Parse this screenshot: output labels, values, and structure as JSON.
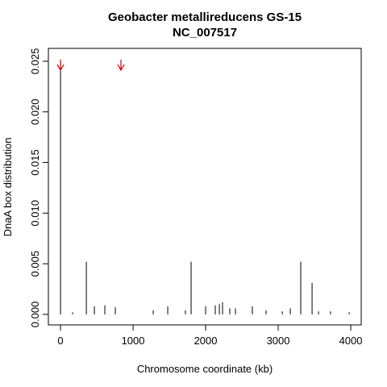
{
  "chart_data": {
    "type": "spike",
    "title": "Geobacter metallireducens GS-15",
    "subtitle": "NC_007517",
    "x_label": "Chromosome coordinate (kb)",
    "y_label": "DnaA box distribution",
    "x": [
      0,
      167,
      356,
      467,
      611,
      756,
      1278,
      1478,
      1722,
      1800,
      2000,
      2133,
      2189,
      2233,
      2333,
      2411,
      2644,
      2833,
      3056,
      3167,
      3311,
      3467,
      3556,
      3722,
      3978
    ],
    "values": [
      0.0245,
      0.0002,
      0.0052,
      0.0008,
      0.0009,
      0.0007,
      0.0004,
      0.0008,
      0.0004,
      0.0052,
      0.0008,
      0.0009,
      0.001,
      0.0012,
      0.0006,
      0.0006,
      0.0008,
      0.0004,
      0.0003,
      0.0006,
      0.0052,
      0.0031,
      0.0003,
      0.0003,
      0.0002
    ],
    "color": "#000000",
    "arrows": {
      "x": [
        0,
        833
      ],
      "color": "#cc0000"
    },
    "xlim": [
      -167,
      4144
    ],
    "ylim": [
      -0.00104,
      0.02627
    ],
    "xticks": [
      0,
      1000,
      2000,
      3000,
      4000
    ],
    "yticks": [
      {
        "value": 0,
        "label": "0.000"
      },
      {
        "value": 0.005,
        "label": "0.005"
      },
      {
        "value": 0.01,
        "label": "0.010"
      },
      {
        "value": 0.015,
        "label": "0.015"
      },
      {
        "value": 0.02,
        "label": "0.020"
      },
      {
        "value": 0.025,
        "label": "0.025"
      }
    ]
  }
}
